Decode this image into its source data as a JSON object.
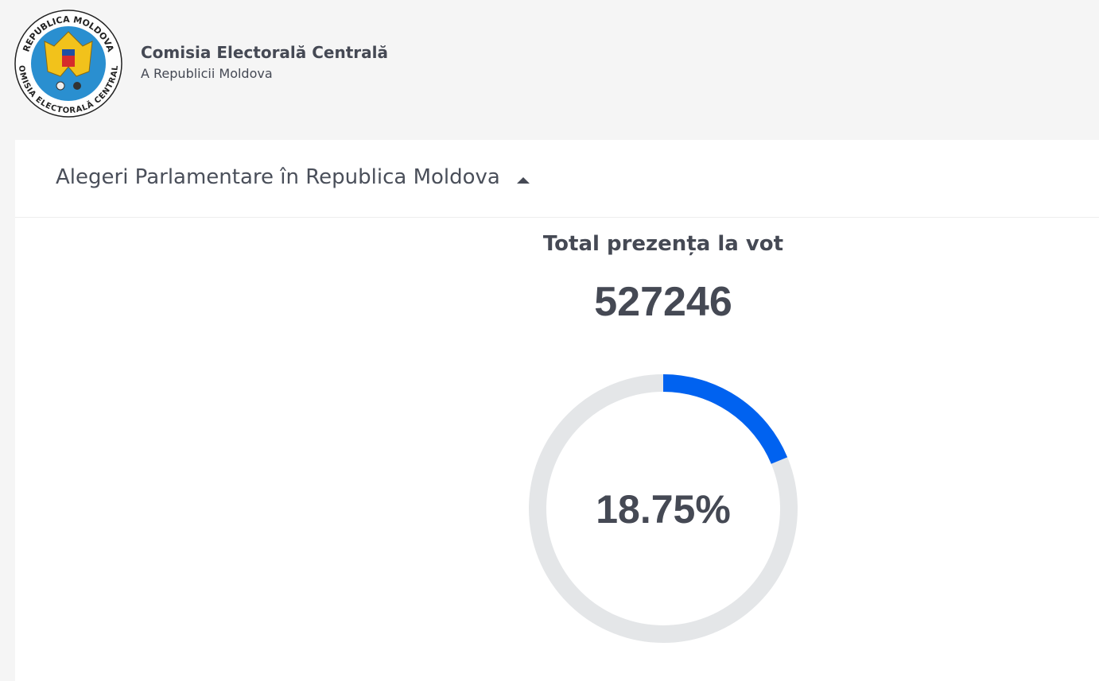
{
  "header": {
    "title": "Comisia Electorală Centrală",
    "subtitle": "A Republicii Moldova",
    "logo_text_top": "REPUBLICA MOLDOVA",
    "logo_text_bottom": "COMISIA ELECTORALĂ CENTRALĂ"
  },
  "panel": {
    "title": "Alegeri Parlamentare în Republica Moldova"
  },
  "turnout": {
    "label": "Total prezența la vot",
    "total": 527246,
    "percent": 18.75,
    "percent_label": "18.75%",
    "range": [
      0,
      100
    ],
    "color": "#0062f0",
    "track_color": "#e4e6e8"
  }
}
